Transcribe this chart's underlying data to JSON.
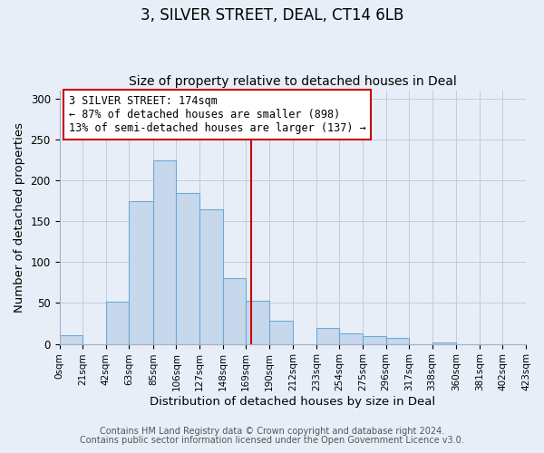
{
  "title": "3, SILVER STREET, DEAL, CT14 6LB",
  "subtitle": "Size of property relative to detached houses in Deal",
  "xlabel": "Distribution of detached houses by size in Deal",
  "ylabel": "Number of detached properties",
  "bar_color": "#c8d8ec",
  "bar_edge_color": "#6baad8",
  "bin_edges": [
    0,
    21,
    42,
    63,
    85,
    106,
    127,
    148,
    169,
    190,
    212,
    233,
    254,
    275,
    296,
    317,
    338,
    360,
    381,
    402,
    423
  ],
  "bar_heights": [
    11,
    0,
    52,
    174,
    224,
    184,
    164,
    80,
    53,
    28,
    0,
    20,
    13,
    9,
    7,
    0,
    2,
    0,
    0,
    0
  ],
  "tick_labels": [
    "0sqm",
    "21sqm",
    "42sqm",
    "63sqm",
    "85sqm",
    "106sqm",
    "127sqm",
    "148sqm",
    "169sqm",
    "190sqm",
    "212sqm",
    "233sqm",
    "254sqm",
    "275sqm",
    "296sqm",
    "317sqm",
    "338sqm",
    "360sqm",
    "381sqm",
    "402sqm",
    "423sqm"
  ],
  "vline_x": 174,
  "vline_color": "#cc0000",
  "annotation_title": "3 SILVER STREET: 174sqm",
  "annotation_line1": "← 87% of detached houses are smaller (898)",
  "annotation_line2": "13% of semi-detached houses are larger (137) →",
  "ylim": [
    0,
    310
  ],
  "yticks": [
    0,
    50,
    100,
    150,
    200,
    250,
    300
  ],
  "bg_color": "#e8eef8",
  "footnote1": "Contains HM Land Registry data © Crown copyright and database right 2024.",
  "footnote2": "Contains public sector information licensed under the Open Government Licence v3.0.",
  "title_fontsize": 12,
  "subtitle_fontsize": 10,
  "axis_label_fontsize": 9.5,
  "tick_fontsize": 7.5,
  "annotation_fontsize": 8.5,
  "footnote_fontsize": 7
}
